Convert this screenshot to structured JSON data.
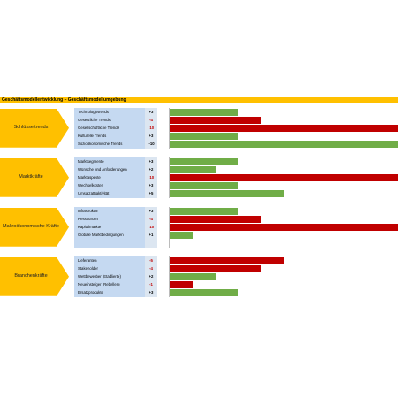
{
  "title": "Geschäftsmodellentwicklung – Geschäftsmodellumgebung",
  "chart_data": {
    "type": "bar",
    "xlim": [
      0,
      10
    ],
    "colors": {
      "positive": "#70ad47",
      "negative": "#c00000",
      "arrow": "#ffc000"
    },
    "groups": [
      {
        "name": "Schlüsseltrends",
        "rows": [
          {
            "label": "Technologietrends",
            "value": 3,
            "display": "+3"
          },
          {
            "label": "Gesetzliche Trends",
            "value": -4,
            "display": "-4"
          },
          {
            "label": "Gesellschaftliche Trends",
            "value": -10,
            "display": "-10"
          },
          {
            "label": "Kulturelle Trends",
            "value": 3,
            "display": "+3"
          },
          {
            "label": "Sozioökonomische Trends",
            "value": 10,
            "display": "+10"
          }
        ]
      },
      {
        "name": "Marktkräfte",
        "rows": [
          {
            "label": "Marktsegmente",
            "value": 3,
            "display": "+3"
          },
          {
            "label": "Wünsche und Anforderungen",
            "value": 2,
            "display": "+2"
          },
          {
            "label": "Marktaspekte",
            "value": -10,
            "display": "-10"
          },
          {
            "label": "Wechselkosten",
            "value": 3,
            "display": "+3"
          },
          {
            "label": "Umsatzattraktivität",
            "value": 5,
            "display": "+5"
          }
        ]
      },
      {
        "name": "Makroökonomische Kräfte",
        "rows": [
          {
            "label": "Infrastruktur",
            "value": 3,
            "display": "+3"
          },
          {
            "label": "Ressourcen",
            "value": -4,
            "display": "-4"
          },
          {
            "label": "Kapitalmärkte",
            "value": -10,
            "display": "-10"
          },
          {
            "label": "Globale Marktbedingungen",
            "value": 1,
            "display": "+1"
          }
        ]
      },
      {
        "name": "Branchenkräfte",
        "rows": [
          {
            "label": "Lieferanten",
            "value": -5,
            "display": "-5"
          },
          {
            "label": "Stakeholder",
            "value": -4,
            "display": "-4"
          },
          {
            "label": "Wettbewerber (Etablierte)",
            "value": 2,
            "display": "+2"
          },
          {
            "label": "Neueinsteiger (Rebellen)",
            "value": -1,
            "display": "-1"
          },
          {
            "label": "Ersatzprodukte",
            "value": 3,
            "display": "+3"
          }
        ]
      }
    ]
  }
}
